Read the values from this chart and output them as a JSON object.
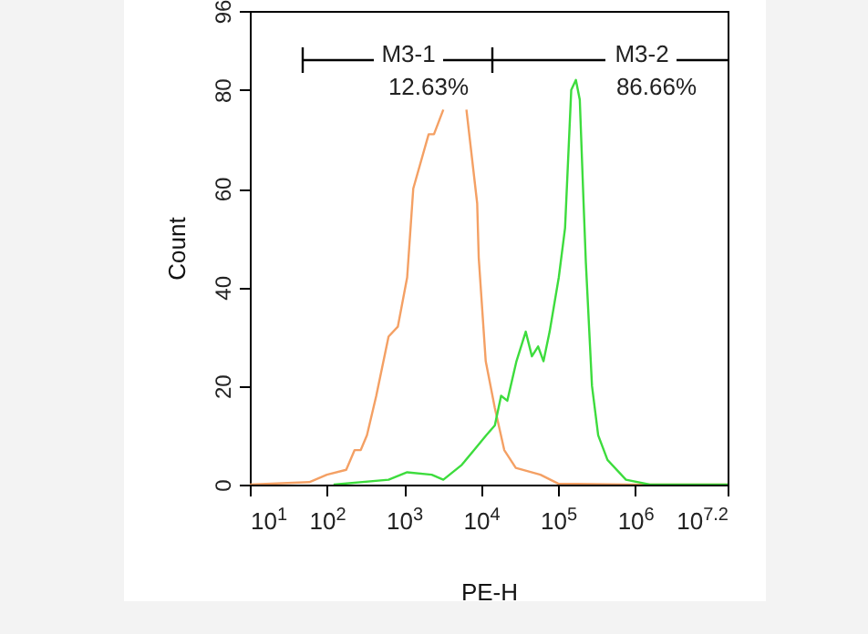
{
  "chart_data": {
    "type": "line",
    "xlabel": "PE-H",
    "ylabel": "Count",
    "log": "x",
    "xlim": [
      10,
      15800000
    ],
    "ylim": [
      0,
      96
    ],
    "xticks": [
      {
        "value": 10,
        "label": "10$^{1}$"
      },
      {
        "value": 100,
        "label": "10$^{2}$"
      },
      {
        "value": 1000,
        "label": "10$^{3}$"
      },
      {
        "value": 10000,
        "label": "10$^{4}$"
      },
      {
        "value": 100000,
        "label": "10$^{5}$"
      },
      {
        "value": 1000000,
        "label": "10$^{6}$"
      },
      {
        "value": 15800000,
        "label": "10$^{7.2}$"
      }
    ],
    "yticks": [
      0,
      20,
      40,
      60,
      80,
      96
    ],
    "series": [
      {
        "color": "#f4a064",
        "x": [
          10,
          59,
          100,
          178,
          229,
          275,
          331,
          437,
          631,
          832,
          1100,
          1320,
          2090,
          2450,
          3240,
          4470,
          6460,
          8910,
          9330,
          11500,
          15100,
          20000,
          28200,
          58900,
          100000,
          891000,
          15800000
        ],
        "values": [
          0,
          0.5,
          2,
          3,
          7,
          7,
          10,
          18,
          30,
          32,
          42,
          60,
          71,
          71,
          76,
          null,
          76,
          57,
          46,
          25,
          15.5,
          7,
          3.4,
          2,
          0.2,
          0,
          0
        ]
      },
      {
        "color": "#3ddc3d",
        "x": [
          122,
          631,
          1100,
          2290,
          3240,
          5620,
          8130,
          11700,
          15100,
          18200,
          21900,
          28800,
          38000,
          45700,
          55000,
          64600,
          77600,
          102000,
          123000,
          148000,
          170000,
          191000,
          214000,
          229000,
          275000,
          331000,
          437000,
          759000,
          1550000,
          15800000
        ],
        "values": [
          0,
          1,
          2.5,
          2,
          1,
          4,
          7,
          10,
          12,
          18,
          17,
          25,
          31,
          26,
          28,
          25,
          31,
          42,
          52,
          80,
          82,
          78,
          57,
          45,
          20,
          10,
          5,
          1,
          0,
          0
        ]
      }
    ],
    "annotations": [
      "M3-1",
      "12.63%",
      "M3-2",
      "86.66%"
    ]
  }
}
